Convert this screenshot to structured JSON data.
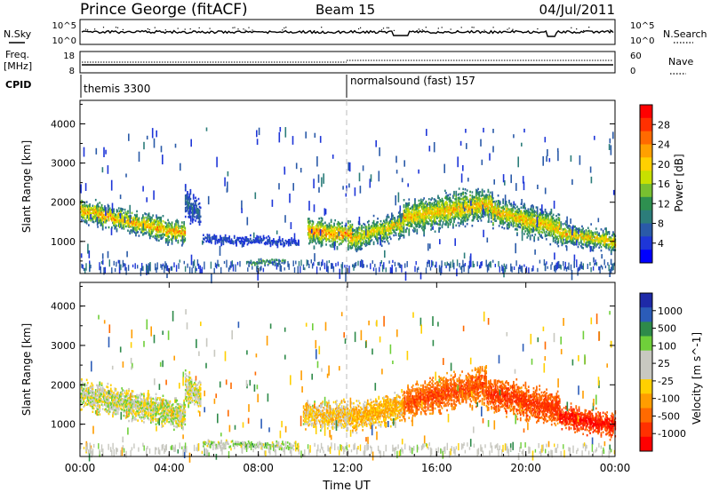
{
  "header": {
    "station": "Prince George (fitACF)",
    "beam": "Beam 15",
    "date": "04/Jul/2011"
  },
  "side_labels": {
    "nsky": "N.Sky",
    "nsearch": "N.Search",
    "freq": "Freq.",
    "freq_unit": "[MHz]",
    "nave": "Nave",
    "cpid": "CPID"
  },
  "cpid_segments": [
    {
      "label": "themis 3300",
      "start_hour": 0
    },
    {
      "label": "normalsound (fast) 157",
      "start_hour": 12
    }
  ],
  "mini_axes": {
    "nsky_ticks": [
      "10^5",
      "10^0"
    ],
    "nsearch_ticks": [
      "10^5",
      "10^0"
    ],
    "freq_ticks": [
      "18",
      "8"
    ],
    "nave_ticks": [
      "60",
      "0"
    ]
  },
  "xaxis": {
    "label": "Time UT",
    "ticks": [
      "00:00",
      "04:00",
      "08:00",
      "12:00",
      "16:00",
      "20:00",
      "00:00"
    ]
  },
  "power_colorbar": {
    "label": "Power [dB]",
    "ticks": [
      "28",
      "24",
      "20",
      "16",
      "12",
      "8",
      "4"
    ],
    "colors": [
      "#ff0000",
      "#ff3000",
      "#ff6a00",
      "#ffa000",
      "#ffd000",
      "#c8e000",
      "#78c030",
      "#2e9050",
      "#2c7d7a",
      "#2a5aa8",
      "#1e36d8",
      "#0000ff"
    ]
  },
  "velocity_colorbar": {
    "label": "Velocity [m s^-1]",
    "ticks": [
      "1000",
      "500",
      "100",
      "25",
      "-25",
      "-100",
      "-500",
      "-1000"
    ],
    "colors": [
      "#1e2aa8",
      "#2b5cb8",
      "#2e8a4a",
      "#6fcf3a",
      "#c8c8c0",
      "#c8c8c0",
      "#ffd000",
      "#ff9d00",
      "#ff6a00",
      "#ff3000",
      "#ff0000"
    ]
  },
  "chart_data": [
    {
      "type": "heatmap",
      "title": "Power",
      "ylabel": "Slant Range [km]",
      "xlabel": "Time UT",
      "xlim": [
        0,
        24
      ],
      "ylim": [
        180,
        4600
      ],
      "yticks": [
        1000,
        2000,
        3000,
        4000
      ],
      "colorbar_label": "Power [dB]",
      "bands": [
        {
          "t0": 0.0,
          "t1": 4.7,
          "r_center_start": 1800,
          "r_center_end": 1150,
          "half_width": 260,
          "level": 0.55,
          "peak": 0.9
        },
        {
          "t0": 4.7,
          "t1": 5.4,
          "r_center_start": 2000,
          "r_center_end": 1650,
          "half_width": 350,
          "level": 0.2,
          "peak": 0.3
        },
        {
          "t0": 5.5,
          "t1": 9.8,
          "r_center_start": 1050,
          "r_center_end": 950,
          "half_width": 80,
          "level": 0.15,
          "peak": 0.2
        },
        {
          "t0": 7.5,
          "t1": 9.2,
          "r_center_start": 450,
          "r_center_end": 450,
          "half_width": 45,
          "level": 0.35,
          "peak": 0.5
        },
        {
          "t0": 10.2,
          "t1": 12.2,
          "r_center_start": 1250,
          "r_center_end": 1150,
          "half_width": 300,
          "level": 0.6,
          "peak": 0.95
        },
        {
          "t0": 12.2,
          "t1": 14.5,
          "r_center_start": 1050,
          "r_center_end": 1450,
          "half_width": 300,
          "level": 0.45,
          "peak": 0.8
        },
        {
          "t0": 14.5,
          "t1": 18.5,
          "r_center_start": 1600,
          "r_center_end": 1950,
          "half_width": 380,
          "level": 0.5,
          "peak": 0.85
        },
        {
          "t0": 18.5,
          "t1": 21.5,
          "r_center_start": 1750,
          "r_center_end": 1300,
          "half_width": 350,
          "level": 0.45,
          "peak": 0.85
        },
        {
          "t0": 21.5,
          "t1": 24.0,
          "r_center_start": 1200,
          "r_center_end": 950,
          "half_width": 250,
          "level": 0.4,
          "peak": 0.85
        }
      ]
    },
    {
      "type": "heatmap",
      "title": "Velocity",
      "ylabel": "Slant Range [km]",
      "xlabel": "Time UT",
      "xlim": [
        0,
        24
      ],
      "ylim": [
        180,
        4600
      ],
      "yticks": [
        1000,
        2000,
        3000,
        4000
      ],
      "colorbar_label": "Velocity [m s^-1]",
      "bands": [
        {
          "t0": 0.0,
          "t1": 4.7,
          "r_center_start": 1750,
          "r_center_end": 1200,
          "half_width": 320,
          "velocity": 0
        },
        {
          "t0": 4.7,
          "t1": 5.4,
          "r_center_start": 1950,
          "r_center_end": 1700,
          "half_width": 330,
          "velocity": 0
        },
        {
          "t0": 5.5,
          "t1": 9.8,
          "r_center_start": 500,
          "r_center_end": 420,
          "half_width": 60,
          "velocity": 60
        },
        {
          "t0": 10.0,
          "t1": 12.2,
          "r_center_start": 1250,
          "r_center_end": 1200,
          "half_width": 300,
          "velocity": -120
        },
        {
          "t0": 12.2,
          "t1": 14.5,
          "r_center_start": 1150,
          "r_center_end": 1450,
          "half_width": 320,
          "velocity": -200
        },
        {
          "t0": 14.5,
          "t1": 18.2,
          "r_center_start": 1550,
          "r_center_end": 2000,
          "half_width": 400,
          "velocity": -600
        },
        {
          "t0": 18.2,
          "t1": 21.5,
          "r_center_start": 1800,
          "r_center_end": 1350,
          "half_width": 380,
          "velocity": -700
        },
        {
          "t0": 21.5,
          "t1": 24.0,
          "r_center_start": 1200,
          "r_center_end": 950,
          "half_width": 260,
          "velocity": -900
        }
      ]
    }
  ]
}
